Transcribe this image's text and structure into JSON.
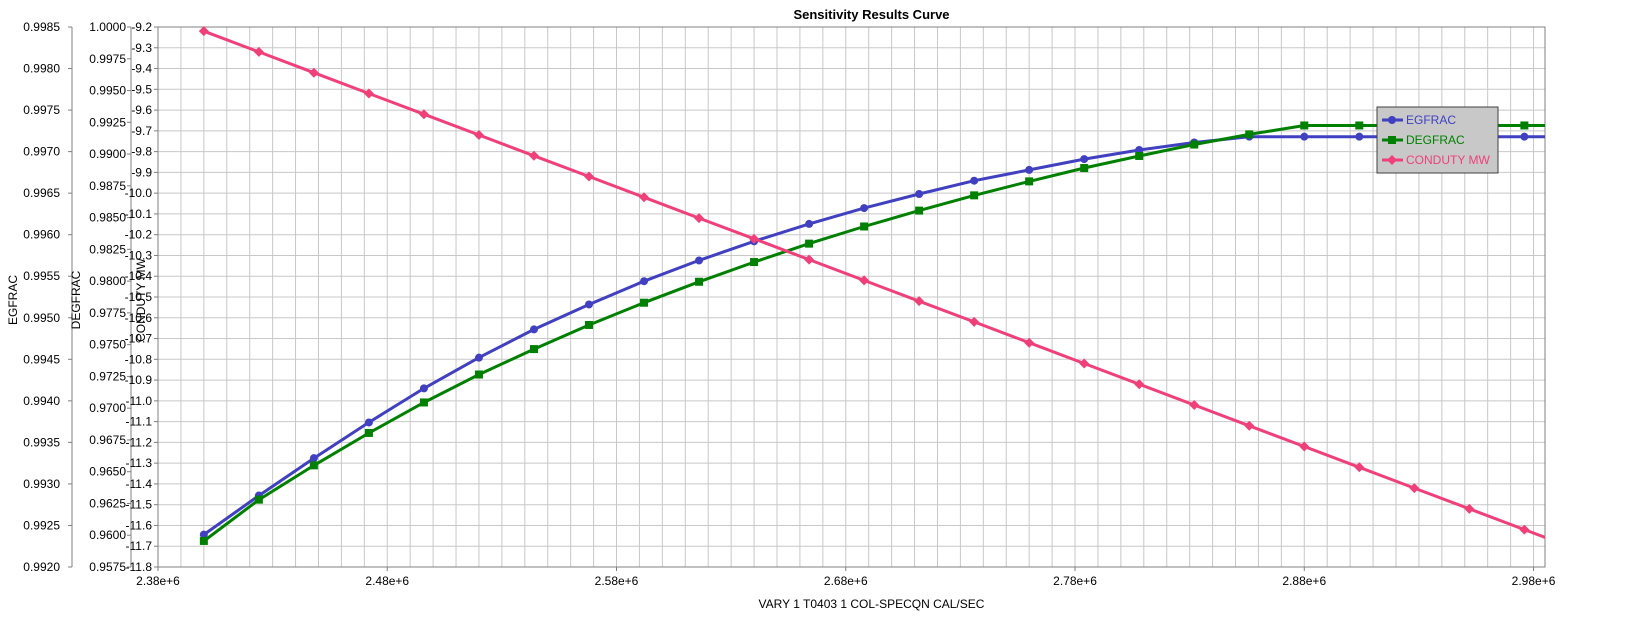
{
  "chart_data": {
    "type": "line",
    "title": "Sensitivity Results Curve",
    "xlabel": "VARY   1 T0403 1 COL-SPECQN CAL/SEC",
    "xlim": [
      2380000,
      2985000
    ],
    "x_ticks": [
      2380000,
      2480000,
      2580000,
      2680000,
      2780000,
      2880000,
      2980000
    ],
    "x_tick_labels": [
      "2.38e+6",
      "2.48e+6",
      "2.58e+6",
      "2.68e+6",
      "2.78e+6",
      "2.88e+6",
      "2.98e+6"
    ],
    "x": [
      2400000,
      2424000,
      2448000,
      2472000,
      2496000,
      2520000,
      2544000,
      2568000,
      2592000,
      2616000,
      2640000,
      2664000,
      2688000,
      2712000,
      2736000,
      2760000,
      2784000,
      2808000,
      2832000,
      2856000,
      2880000,
      2904000,
      2928000,
      2952000,
      2976000,
      3000000
    ],
    "grid": true,
    "legend_position": "top-right",
    "axes": [
      {
        "key": "egfrac",
        "label": "EGFRAC",
        "range": [
          0.992,
          0.9985
        ],
        "tick_labels": [
          "0.9985",
          "0.9980",
          "0.9975",
          "0.9970",
          "0.9965",
          "0.9960",
          "0.9955",
          "0.9950",
          "0.9945",
          "0.9940",
          "0.9935",
          "0.9930",
          "0.9925",
          "0.9920"
        ]
      },
      {
        "key": "degfrac",
        "label": "DEGFRAC",
        "range": [
          0.9575,
          1.0
        ],
        "tick_labels": [
          "1.0000",
          "0.9975",
          "0.9950",
          "0.9925",
          "0.9900",
          "0.9875",
          "0.9850",
          "0.9825",
          "0.9800",
          "0.9775",
          "0.9750",
          "0.9725",
          "0.9700",
          "0.9675",
          "0.9650",
          "0.9625",
          "0.9600",
          "0.9575"
        ]
      },
      {
        "key": "condmw",
        "label": "CONDUTY MW",
        "range": [
          -11.8,
          -9.2
        ],
        "tick_labels": [
          "-9.2",
          "-9.3",
          "-9.4",
          "-9.5",
          "-9.6",
          "-9.7",
          "-9.8",
          "-9.9",
          "-10.0",
          "-10.1",
          "-10.2",
          "-10.3",
          "-10.4",
          "-10.5",
          "-10.6",
          "-10.7",
          "-10.8",
          "-10.9",
          "-11.0",
          "-11.1",
          "-11.2",
          "-11.3",
          "-11.4",
          "-11.5",
          "-11.6",
          "-11.7",
          "-11.8"
        ]
      }
    ],
    "series": [
      {
        "name": "EGFRAC",
        "axis": "egfrac",
        "color": "#4040c0",
        "marker": "circle",
        "values": [
          0.99239,
          0.99286,
          0.99331,
          0.99374,
          0.99415,
          0.99452,
          0.99486,
          0.99516,
          0.99544,
          0.99569,
          0.99592,
          0.99613,
          0.99632,
          0.99649,
          0.99665,
          0.99678,
          0.99691,
          0.99702,
          0.99711,
          0.99718,
          0.99718,
          0.99718,
          0.99718,
          0.99718,
          0.99718,
          0.99718
        ]
      },
      {
        "name": "DEGFRAC",
        "axis": "degfrac",
        "color": "#008000",
        "marker": "square",
        "values": [
          0.95955,
          0.9628,
          0.9655,
          0.96805,
          0.97045,
          0.97265,
          0.97465,
          0.97655,
          0.9783,
          0.97995,
          0.9815,
          0.98295,
          0.9843,
          0.98555,
          0.98675,
          0.98785,
          0.9889,
          0.98985,
          0.99075,
          0.99155,
          0.99225,
          0.99225,
          0.99225,
          0.99225,
          0.99225,
          0.99225
        ]
      },
      {
        "name": "CONDUTY MW",
        "axis": "condmw",
        "color": "#f0407a",
        "marker": "diamond",
        "values": [
          -9.22,
          -9.32,
          -9.42,
          -9.52,
          -9.62,
          -9.72,
          -9.82,
          -9.92,
          -10.02,
          -10.12,
          -10.22,
          -10.32,
          -10.42,
          -10.52,
          -10.62,
          -10.72,
          -10.82,
          -10.92,
          -11.02,
          -11.12,
          -11.22,
          -11.32,
          -11.42,
          -11.52,
          -11.62,
          -11.72
        ]
      }
    ]
  }
}
